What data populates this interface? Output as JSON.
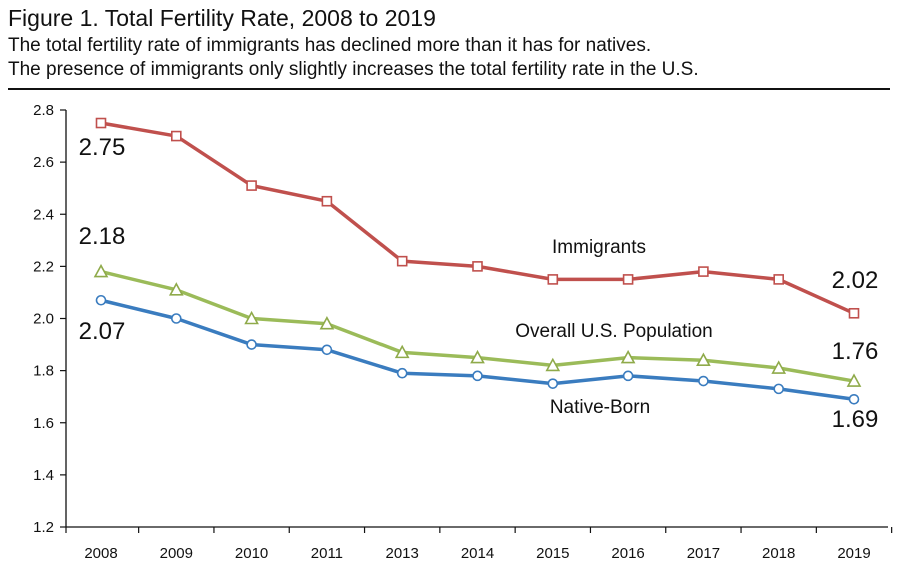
{
  "header": {
    "title": "Figure 1. Total Fertility Rate, 2008 to 2019",
    "subtitle_line1": "The total fertility rate of immigrants has declined more than it has for natives.",
    "subtitle_line2": "The presence of immigrants only slightly increases the total fertility rate in the U.S."
  },
  "chart_data": {
    "type": "line",
    "title": "Figure 1. Total Fertility Rate, 2008 to 2019",
    "xlabel": "",
    "ylabel": "",
    "categories": [
      "2008",
      "2009",
      "2010",
      "2011",
      "2013",
      "2014",
      "2015",
      "2016",
      "2017",
      "2018",
      "2019"
    ],
    "ylim": [
      1.2,
      2.8
    ],
    "yticks": [
      "1.2",
      "1.4",
      "1.6",
      "1.8",
      "2.0",
      "2.2",
      "2.4",
      "2.6",
      "2.8"
    ],
    "grid": false,
    "legend": "inline labels",
    "series": [
      {
        "name": "Immigrants",
        "color": "#c0504d",
        "marker": "square",
        "values": [
          2.75,
          2.7,
          2.51,
          2.45,
          2.22,
          2.2,
          2.15,
          2.15,
          2.18,
          2.15,
          2.02
        ],
        "label_start": "2.75",
        "label_end": "2.02"
      },
      {
        "name": "Overall U.S. Population",
        "color": "#9bbb59",
        "marker": "triangle",
        "values": [
          2.18,
          2.11,
          2.0,
          1.98,
          1.87,
          1.85,
          1.82,
          1.85,
          1.84,
          1.81,
          1.76
        ],
        "label_start": "2.18",
        "label_end": "1.76"
      },
      {
        "name": "Native-Born",
        "color": "#3a7cbf",
        "marker": "circle",
        "values": [
          2.07,
          2.0,
          1.9,
          1.88,
          1.79,
          1.78,
          1.75,
          1.78,
          1.76,
          1.73,
          1.69
        ],
        "label_start": "2.07",
        "label_end": "1.69"
      }
    ]
  }
}
